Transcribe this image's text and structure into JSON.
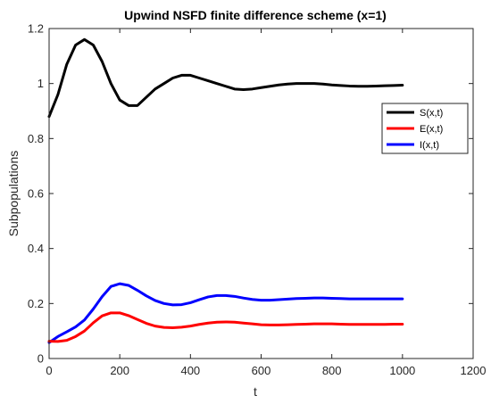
{
  "chart_data": {
    "type": "line",
    "title": "Upwind NSFD finite difference scheme (x=1)",
    "xlabel": "t",
    "ylabel": "Subpopulations",
    "xlim": [
      0,
      1200
    ],
    "ylim": [
      0,
      1.2
    ],
    "xticks": [
      0,
      200,
      400,
      600,
      800,
      1000,
      1200
    ],
    "yticks": [
      0,
      0.2,
      0.4,
      0.6,
      0.8,
      1,
      1.2
    ],
    "xtick_labels": [
      "0",
      "200",
      "400",
      "600",
      "800",
      "1000",
      "1200"
    ],
    "ytick_labels": [
      "0",
      "0.2",
      "0.4",
      "0.6",
      "0.8",
      "1",
      "1.2"
    ],
    "grid": false,
    "legend_position": "right",
    "series": [
      {
        "name": "S(x,t)",
        "color": "#000000",
        "x": [
          0,
          25,
          50,
          75,
          100,
          125,
          150,
          175,
          200,
          225,
          250,
          275,
          300,
          325,
          350,
          375,
          400,
          425,
          450,
          475,
          500,
          525,
          550,
          575,
          600,
          625,
          650,
          675,
          700,
          725,
          750,
          775,
          800,
          825,
          850,
          875,
          900,
          925,
          950,
          975,
          1000
        ],
        "y": [
          0.88,
          0.96,
          1.07,
          1.14,
          1.16,
          1.14,
          1.08,
          1.0,
          0.94,
          0.92,
          0.92,
          0.95,
          0.98,
          1.0,
          1.02,
          1.03,
          1.03,
          1.02,
          1.01,
          1.0,
          0.99,
          0.98,
          0.978,
          0.98,
          0.985,
          0.99,
          0.995,
          0.998,
          1.0,
          1.0,
          1.0,
          0.998,
          0.995,
          0.993,
          0.991,
          0.99,
          0.99,
          0.991,
          0.992,
          0.993,
          0.994
        ]
      },
      {
        "name": "E(x,t)",
        "color": "#ff0000",
        "x": [
          0,
          25,
          50,
          75,
          100,
          125,
          150,
          175,
          200,
          225,
          250,
          275,
          300,
          325,
          350,
          375,
          400,
          425,
          450,
          475,
          500,
          525,
          550,
          575,
          600,
          625,
          650,
          675,
          700,
          725,
          750,
          775,
          800,
          825,
          850,
          875,
          900,
          925,
          950,
          975,
          1000
        ],
        "y": [
          0.063,
          0.062,
          0.066,
          0.08,
          0.1,
          0.13,
          0.155,
          0.166,
          0.166,
          0.156,
          0.142,
          0.128,
          0.118,
          0.113,
          0.112,
          0.114,
          0.118,
          0.124,
          0.129,
          0.132,
          0.133,
          0.132,
          0.129,
          0.126,
          0.123,
          0.122,
          0.122,
          0.123,
          0.124,
          0.125,
          0.126,
          0.126,
          0.126,
          0.125,
          0.124,
          0.124,
          0.124,
          0.124,
          0.124,
          0.125,
          0.125
        ]
      },
      {
        "name": "I(x,t)",
        "color": "#0000ff",
        "x": [
          0,
          25,
          50,
          75,
          100,
          125,
          150,
          175,
          200,
          225,
          250,
          275,
          300,
          325,
          350,
          375,
          400,
          425,
          450,
          475,
          500,
          525,
          550,
          575,
          600,
          625,
          650,
          675,
          700,
          725,
          750,
          775,
          800,
          825,
          850,
          875,
          900,
          925,
          950,
          975,
          1000
        ],
        "y": [
          0.058,
          0.08,
          0.097,
          0.115,
          0.14,
          0.18,
          0.225,
          0.262,
          0.272,
          0.266,
          0.248,
          0.228,
          0.211,
          0.2,
          0.195,
          0.196,
          0.203,
          0.214,
          0.224,
          0.229,
          0.229,
          0.226,
          0.22,
          0.215,
          0.212,
          0.212,
          0.214,
          0.216,
          0.218,
          0.219,
          0.22,
          0.22,
          0.219,
          0.218,
          0.217,
          0.217,
          0.217,
          0.217,
          0.217,
          0.217,
          0.217
        ]
      }
    ]
  }
}
